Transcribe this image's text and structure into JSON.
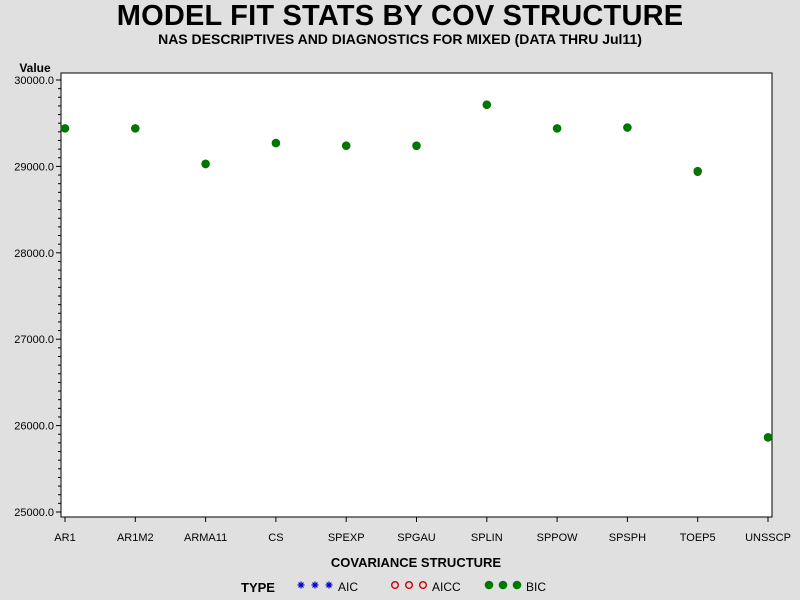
{
  "chart_data": {
    "type": "scatter",
    "title": "MODEL FIT STATS BY COV STRUCTURE",
    "subtitle": "NAS DESCRIPTIVES AND DIAGNOSTICS FOR MIXED (DATA THRU Jul11)",
    "xlabel": "COVARIANCE STRUCTURE",
    "ylabel": "Value",
    "categories": [
      "AR1",
      "AR1M2",
      "ARMA11",
      "CS",
      "SPEXP",
      "SPGAU",
      "SPLIN",
      "SPPOW",
      "SPSPH",
      "TOEP5",
      "UNSSCP"
    ],
    "ylim": [
      25000,
      30000
    ],
    "yticks": [
      "25000.0",
      "26000.0",
      "27000.0",
      "28000.0",
      "29000.0",
      "30000.0"
    ],
    "grid": false,
    "legend_position": "bottom",
    "legend_title": "TYPE",
    "series": [
      {
        "name": "AIC",
        "marker": "star",
        "color": "#0000cc",
        "values": [
          29440,
          29440,
          29020,
          29270,
          29240,
          29235,
          29710,
          29440,
          29450,
          28930,
          25860
        ]
      },
      {
        "name": "AICC",
        "marker": "circle-open",
        "color": "#cc0000",
        "values": [
          29440,
          29440,
          29025,
          29270,
          29240,
          29235,
          29710,
          29440,
          29450,
          28935,
          25860
        ]
      },
      {
        "name": "BIC",
        "marker": "circle-filled",
        "color": "#007700",
        "values": [
          29440,
          29440,
          29030,
          29270,
          29240,
          29240,
          29715,
          29440,
          29450,
          28945,
          25865
        ]
      }
    ]
  }
}
